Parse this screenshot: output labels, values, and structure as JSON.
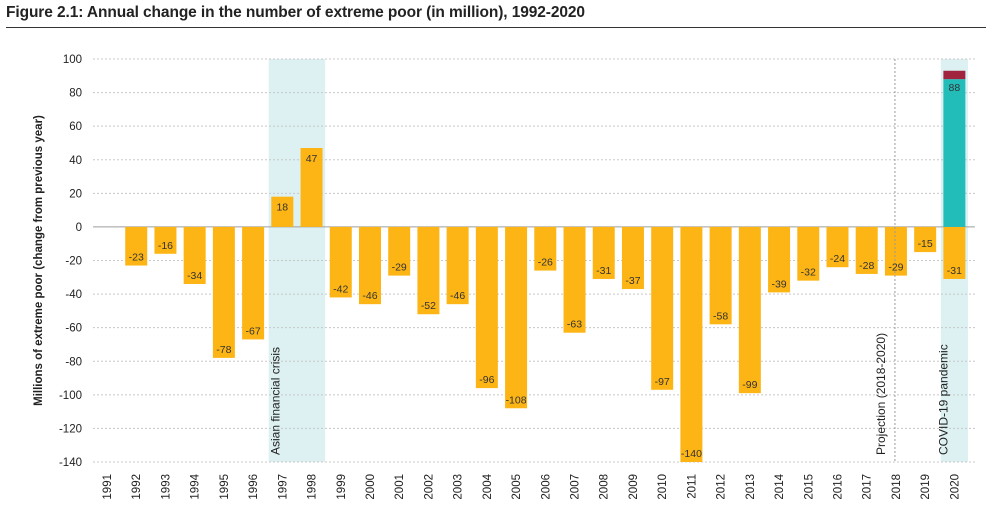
{
  "title": "Figure 2.1: Annual change in the number of extreme poor (in million), 1992-2020",
  "colors": {
    "negative": "#FDB515",
    "positive": "#FDB515",
    "covid_base": "#22BDB9",
    "covid_top": "#A0243E",
    "shade": "#DDF1F3",
    "grid": "#C8C8C8",
    "projection_line": "#9A9A9A"
  },
  "chart_data": {
    "type": "bar",
    "title": "Figure 2.1: Annual change in the number of extreme poor (in million), 1992-2020",
    "xlabel": "",
    "ylabel": "Millions of extreme poor (change from previous year)",
    "ylim": [
      -140,
      100
    ],
    "yticks": [
      100,
      80,
      60,
      40,
      20,
      0,
      -20,
      -40,
      -60,
      -80,
      -100,
      -120,
      -140
    ],
    "categories": [
      "1991",
      "1992",
      "1993",
      "1994",
      "1995",
      "1996",
      "1997",
      "1998",
      "1999",
      "2000",
      "2001",
      "2002",
      "2003",
      "2004",
      "2005",
      "2006",
      "2007",
      "2008",
      "2009",
      "2010",
      "2011",
      "2012",
      "2013",
      "2014",
      "2015",
      "2016",
      "2017",
      "2018",
      "2019",
      "2020"
    ],
    "series": [
      {
        "name": "Annual change",
        "values": [
          null,
          -23,
          -16,
          -34,
          -78,
          -67,
          18,
          47,
          -42,
          -46,
          -29,
          -52,
          -46,
          -96,
          -108,
          -26,
          -63,
          -31,
          -37,
          -97,
          -140,
          -58,
          -99,
          -39,
          -32,
          -24,
          -28,
          -29,
          -15,
          -31
        ]
      }
    ],
    "covid_stack": {
      "category": "2020",
      "base_value": 88,
      "top_value": 5
    },
    "shaded_periods": [
      {
        "from": "1997",
        "to": "1998",
        "label": "Asian financial crisis"
      },
      {
        "from": "2020",
        "to": "2020",
        "label": "COVID-19 pandemic"
      }
    ],
    "projection": {
      "from": "2018",
      "label": "Projection (2018-2020)"
    }
  }
}
